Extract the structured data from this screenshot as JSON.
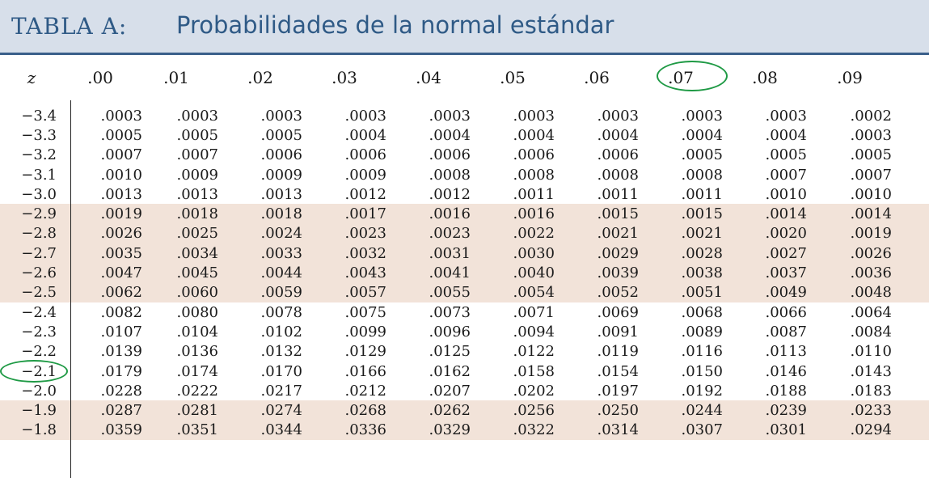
{
  "title": {
    "prefix": "TABLA A:",
    "main": "Probabilidades de la normal estándar"
  },
  "table": {
    "z_header": "z",
    "columns": [
      ".00",
      ".01",
      ".02",
      ".03",
      ".04",
      ".05",
      ".06",
      ".07",
      ".08",
      ".09"
    ],
    "rows": [
      {
        "z": "−3.4",
        "shaded": false,
        "values": [
          ".0003",
          ".0003",
          ".0003",
          ".0003",
          ".0003",
          ".0003",
          ".0003",
          ".0003",
          ".0003",
          ".0002"
        ]
      },
      {
        "z": "−3.3",
        "shaded": false,
        "values": [
          ".0005",
          ".0005",
          ".0005",
          ".0004",
          ".0004",
          ".0004",
          ".0004",
          ".0004",
          ".0004",
          ".0003"
        ]
      },
      {
        "z": "−3.2",
        "shaded": false,
        "values": [
          ".0007",
          ".0007",
          ".0006",
          ".0006",
          ".0006",
          ".0006",
          ".0006",
          ".0005",
          ".0005",
          ".0005"
        ]
      },
      {
        "z": "−3.1",
        "shaded": false,
        "values": [
          ".0010",
          ".0009",
          ".0009",
          ".0009",
          ".0008",
          ".0008",
          ".0008",
          ".0008",
          ".0007",
          ".0007"
        ]
      },
      {
        "z": "−3.0",
        "shaded": false,
        "values": [
          ".0013",
          ".0013",
          ".0013",
          ".0012",
          ".0012",
          ".0011",
          ".0011",
          ".0011",
          ".0010",
          ".0010"
        ]
      },
      {
        "z": "−2.9",
        "shaded": true,
        "values": [
          ".0019",
          ".0018",
          ".0018",
          ".0017",
          ".0016",
          ".0016",
          ".0015",
          ".0015",
          ".0014",
          ".0014"
        ]
      },
      {
        "z": "−2.8",
        "shaded": true,
        "values": [
          ".0026",
          ".0025",
          ".0024",
          ".0023",
          ".0023",
          ".0022",
          ".0021",
          ".0021",
          ".0020",
          ".0019"
        ]
      },
      {
        "z": "−2.7",
        "shaded": true,
        "values": [
          ".0035",
          ".0034",
          ".0033",
          ".0032",
          ".0031",
          ".0030",
          ".0029",
          ".0028",
          ".0027",
          ".0026"
        ]
      },
      {
        "z": "−2.6",
        "shaded": true,
        "values": [
          ".0047",
          ".0045",
          ".0044",
          ".0043",
          ".0041",
          ".0040",
          ".0039",
          ".0038",
          ".0037",
          ".0036"
        ]
      },
      {
        "z": "−2.5",
        "shaded": true,
        "values": [
          ".0062",
          ".0060",
          ".0059",
          ".0057",
          ".0055",
          ".0054",
          ".0052",
          ".0051",
          ".0049",
          ".0048"
        ]
      },
      {
        "z": "−2.4",
        "shaded": false,
        "values": [
          ".0082",
          ".0080",
          ".0078",
          ".0075",
          ".0073",
          ".0071",
          ".0069",
          ".0068",
          ".0066",
          ".0064"
        ]
      },
      {
        "z": "−2.3",
        "shaded": false,
        "values": [
          ".0107",
          ".0104",
          ".0102",
          ".0099",
          ".0096",
          ".0094",
          ".0091",
          ".0089",
          ".0087",
          ".0084"
        ]
      },
      {
        "z": "−2.2",
        "shaded": false,
        "values": [
          ".0139",
          ".0136",
          ".0132",
          ".0129",
          ".0125",
          ".0122",
          ".0119",
          ".0116",
          ".0113",
          ".0110"
        ]
      },
      {
        "z": "−2.1",
        "shaded": false,
        "values": [
          ".0179",
          ".0174",
          ".0170",
          ".0166",
          ".0162",
          ".0158",
          ".0154",
          ".0150",
          ".0146",
          ".0143"
        ]
      },
      {
        "z": "−2.0",
        "shaded": false,
        "values": [
          ".0228",
          ".0222",
          ".0217",
          ".0212",
          ".0207",
          ".0202",
          ".0197",
          ".0192",
          ".0188",
          ".0183"
        ]
      },
      {
        "z": "−1.9",
        "shaded": true,
        "values": [
          ".0287",
          ".0281",
          ".0274",
          ".0268",
          ".0262",
          ".0256",
          ".0250",
          ".0244",
          ".0239",
          ".0233"
        ]
      },
      {
        "z": "−1.8",
        "shaded": true,
        "values": [
          ".0359",
          ".0351",
          ".0344",
          ".0336",
          ".0329",
          ".0322",
          ".0314",
          ".0307",
          ".0301",
          ".0294"
        ]
      }
    ]
  },
  "highlights": {
    "color": "#1f9a45",
    "column": ".07",
    "row": "−2.1"
  }
}
